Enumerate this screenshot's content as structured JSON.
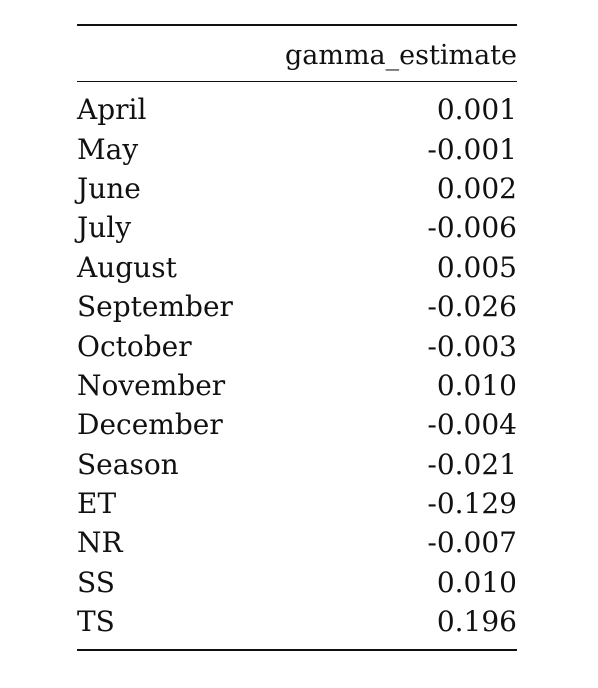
{
  "table": {
    "header": {
      "column_1": "",
      "column_2": "gamma_estimate"
    },
    "rows": [
      {
        "label": "April",
        "value": "0.001"
      },
      {
        "label": "May",
        "value": "-0.001"
      },
      {
        "label": "June",
        "value": "0.002"
      },
      {
        "label": "July",
        "value": "-0.006"
      },
      {
        "label": "August",
        "value": "0.005"
      },
      {
        "label": "September",
        "value": "-0.026"
      },
      {
        "label": "October",
        "value": "-0.003"
      },
      {
        "label": "November",
        "value": "0.010"
      },
      {
        "label": "December",
        "value": "-0.004"
      },
      {
        "label": "Season",
        "value": "-0.021"
      },
      {
        "label": "ET",
        "value": "-0.129"
      },
      {
        "label": "NR",
        "value": "-0.007"
      },
      {
        "label": "SS",
        "value": "0.010"
      },
      {
        "label": "TS",
        "value": "0.196"
      }
    ]
  }
}
